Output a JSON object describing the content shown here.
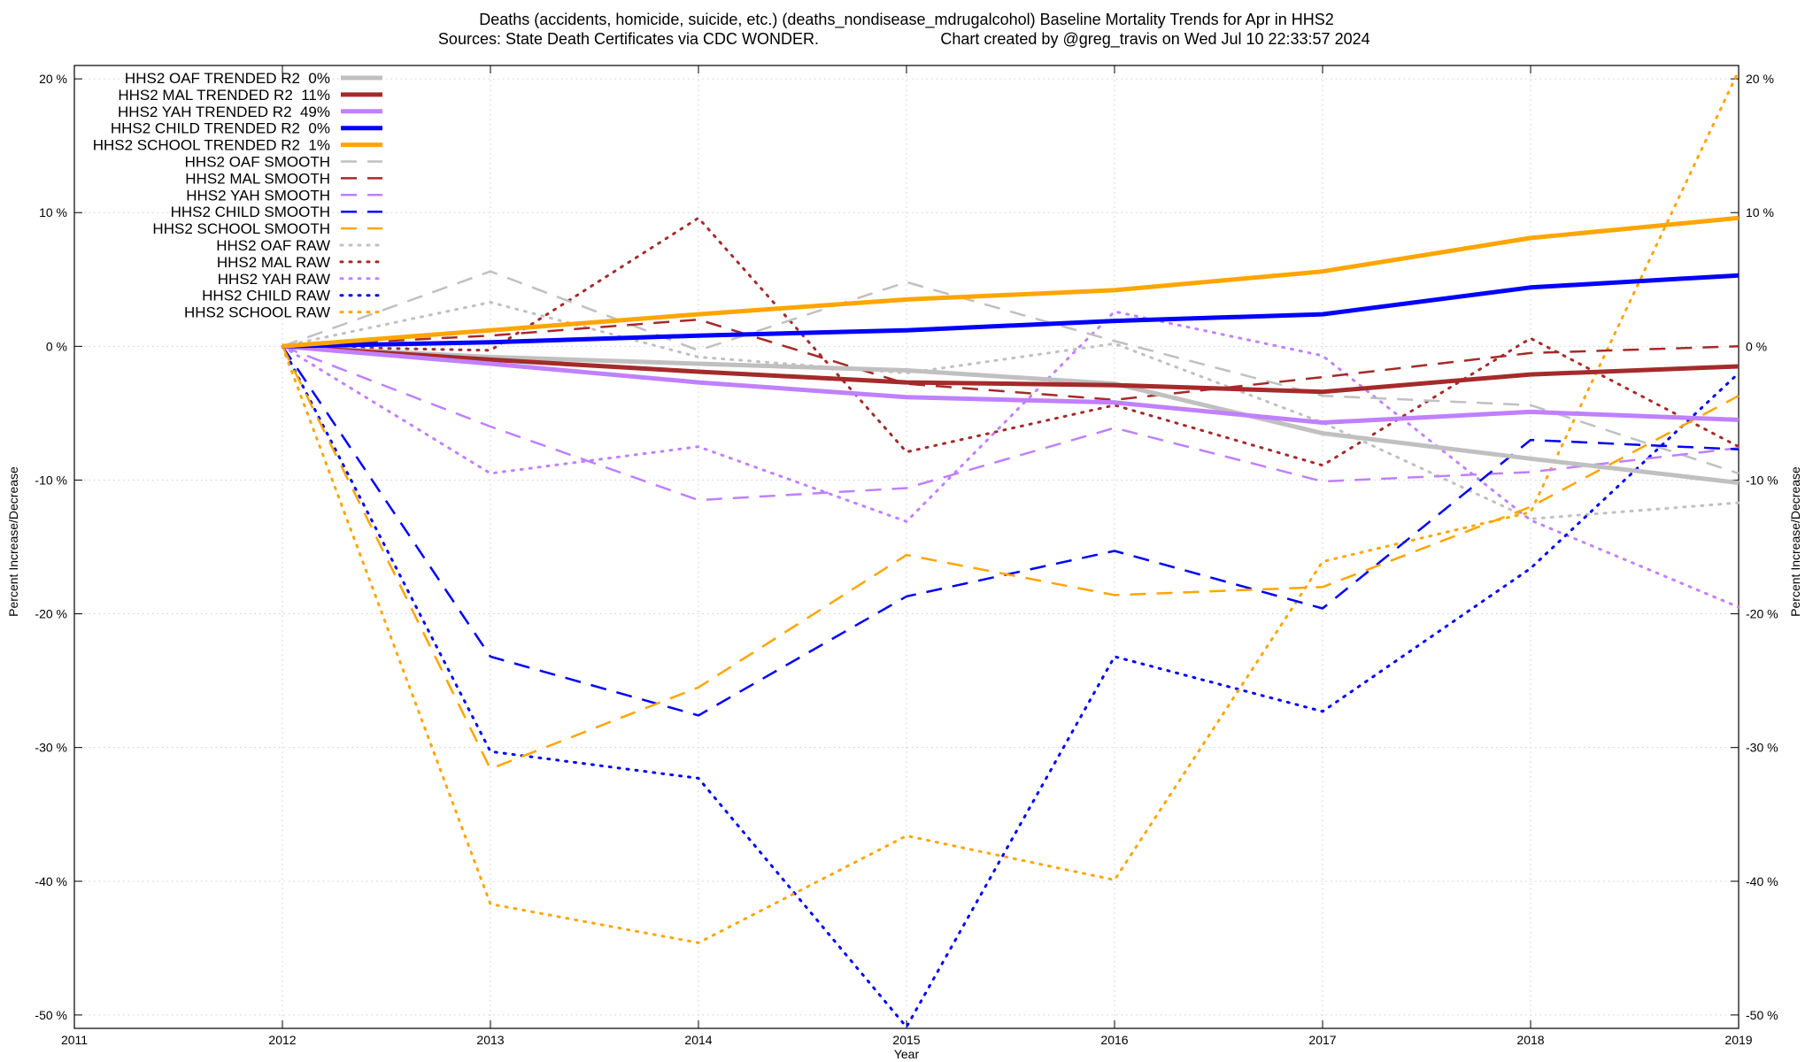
{
  "title": {
    "line1": "Deaths (accidents, homicide, suicide, etc.) (deaths_nondisease_mdrugalcohol)  Baseline Mortality Trends for Apr in HHS2",
    "line2_left": "Sources: State Death Certificates via CDC WONDER.",
    "line2_right": "Chart created by @greg_travis on Wed Jul 10 22:33:57 2024"
  },
  "axes": {
    "xlabel": "Year",
    "ylabel_left": "Percent Increase/Decrease",
    "ylabel_right": "Percent Increase/Decrease"
  },
  "chart_data": {
    "type": "line",
    "xlim": [
      2011,
      2019
    ],
    "ylim": [
      -51,
      21
    ],
    "grid": true,
    "legend_placement": "top-left",
    "x_ticks": [
      "2011",
      "2012",
      "2013",
      "2014",
      "2015",
      "2016",
      "2017",
      "2018",
      "2019"
    ],
    "y_ticks": [
      {
        "value": 20,
        "label": "20 %"
      },
      {
        "value": 10,
        "label": "10 %"
      },
      {
        "value": 0,
        "label": "0 %"
      },
      {
        "value": -10,
        "label": "-10 %"
      },
      {
        "value": -20,
        "label": "-20 %"
      },
      {
        "value": -30,
        "label": "-30 %"
      },
      {
        "value": -40,
        "label": "-40 %"
      },
      {
        "value": -50,
        "label": "-50 %"
      }
    ],
    "x": [
      2012,
      2013,
      2014,
      2015,
      2016,
      2017,
      2018,
      2019
    ],
    "series": [
      {
        "name": "HHS2 OAF TRENDED R2  0%",
        "style": "solid",
        "color": "#c0c0c0",
        "values": [
          0,
          -0.8,
          -1.3,
          -1.8,
          -2.8,
          -6.5,
          -8.4,
          -10.2
        ]
      },
      {
        "name": "HHS2 MAL TRENDED R2  11%",
        "style": "solid",
        "color": "#a52a2a",
        "values": [
          0,
          -1.0,
          -1.9,
          -2.7,
          -2.9,
          -3.4,
          -2.1,
          -1.5
        ]
      },
      {
        "name": "HHS2 YAH TRENDED R2  49%",
        "style": "solid",
        "color": "#c080ff",
        "values": [
          0,
          -1.3,
          -2.7,
          -3.8,
          -4.2,
          -5.7,
          -4.9,
          -5.5
        ]
      },
      {
        "name": "HHS2 CHILD TRENDED R2  0%",
        "style": "solid",
        "color": "#0000ff",
        "values": [
          0,
          0.3,
          0.8,
          1.2,
          1.9,
          2.4,
          4.4,
          5.3
        ]
      },
      {
        "name": "HHS2 SCHOOL TRENDED R2  1%",
        "style": "solid",
        "color": "#ffa500",
        "values": [
          0,
          1.2,
          2.4,
          3.5,
          4.2,
          5.6,
          8.1,
          9.6
        ]
      },
      {
        "name": "HHS2 OAF SMOOTH",
        "style": "dashed",
        "color": "#c0c0c0",
        "values": [
          0,
          5.6,
          -0.3,
          4.8,
          0.4,
          -3.7,
          -4.4,
          -9.5
        ]
      },
      {
        "name": "HHS2 MAL SMOOTH",
        "style": "dashed",
        "color": "#a52a2a",
        "values": [
          0,
          0.8,
          2.0,
          -2.8,
          -4.0,
          -2.3,
          -0.5,
          0.0
        ]
      },
      {
        "name": "HHS2 YAH SMOOTH",
        "style": "dashed",
        "color": "#c080ff",
        "values": [
          0,
          -6.0,
          -11.5,
          -10.6,
          -6.1,
          -10.1,
          -9.4,
          -7.6
        ]
      },
      {
        "name": "HHS2 CHILD SMOOTH",
        "style": "dashed",
        "color": "#0000ff",
        "values": [
          0,
          -23.2,
          -27.6,
          -18.7,
          -15.3,
          -19.6,
          -7.0,
          -7.7
        ]
      },
      {
        "name": "HHS2 SCHOOL SMOOTH",
        "style": "dashed",
        "color": "#ffa500",
        "values": [
          0,
          -31.6,
          -25.5,
          -15.6,
          -18.6,
          -18.0,
          -12.0,
          -3.7
        ]
      },
      {
        "name": "HHS2 OAF RAW",
        "style": "dotted",
        "color": "#c0c0c0",
        "values": [
          0,
          3.3,
          -0.8,
          -2.0,
          0.2,
          -5.7,
          -12.9,
          -11.7
        ]
      },
      {
        "name": "HHS2 MAL RAW",
        "style": "dotted",
        "color": "#a52a2a",
        "values": [
          0,
          -0.3,
          9.6,
          -7.9,
          -4.4,
          -8.9,
          0.6,
          -7.5
        ]
      },
      {
        "name": "HHS2 YAH RAW",
        "style": "dotted",
        "color": "#c080ff",
        "values": [
          0,
          -9.5,
          -7.5,
          -13.1,
          2.6,
          -0.7,
          -13.0,
          -19.5
        ]
      },
      {
        "name": "HHS2 CHILD RAW",
        "style": "dotted",
        "color": "#0000ff",
        "values": [
          0,
          -30.3,
          -32.3,
          -50.9,
          -23.2,
          -27.3,
          -16.6,
          -2.0
        ]
      },
      {
        "name": "HHS2 SCHOOL RAW",
        "style": "dotted",
        "color": "#ffa500",
        "values": [
          0,
          -41.7,
          -44.6,
          -36.6,
          -39.9,
          -16.1,
          -12.4,
          20.6
        ]
      }
    ]
  }
}
